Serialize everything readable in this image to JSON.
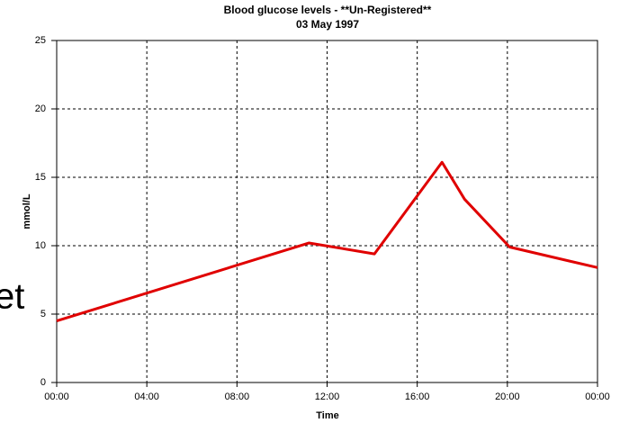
{
  "background_text": "et",
  "chart_data": {
    "type": "line",
    "title": "Blood glucose levels - **Un-Registered**",
    "subtitle": "03  May  1997",
    "x_label": "Time",
    "y_label": "mmol/L",
    "x": [
      0,
      11.2,
      14.1,
      17.1,
      18.1,
      20.1,
      24
    ],
    "series": [
      {
        "name": "Blood glucose",
        "color": "#e00000",
        "values": [
          4.5,
          10.2,
          9.4,
          16.1,
          13.4,
          9.9,
          8.4
        ]
      }
    ],
    "xlim": [
      0,
      24
    ],
    "xticks": [
      {
        "value": 0,
        "label": "00:00"
      },
      {
        "value": 4,
        "label": "04:00"
      },
      {
        "value": 8,
        "label": "08:00"
      },
      {
        "value": 12,
        "label": "12:00"
      },
      {
        "value": 16,
        "label": "16:00"
      },
      {
        "value": 20,
        "label": "20:00"
      },
      {
        "value": 24,
        "label": "00:00"
      }
    ],
    "ylim": [
      0,
      25
    ],
    "yticks": [
      0,
      5,
      10,
      15,
      20,
      25
    ],
    "grid": true
  }
}
